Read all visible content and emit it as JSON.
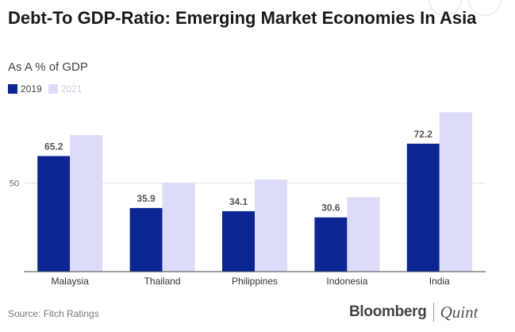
{
  "chart_data": {
    "type": "bar",
    "title": "Debt-To GDP-Ratio: Emerging Market Economies In Asia",
    "subtitle": "As A % of GDP",
    "categories": [
      "Malaysia",
      "Thailand",
      "Philippines",
      "Indonesia",
      "India"
    ],
    "series": [
      {
        "name": "2019",
        "values": [
          65.2,
          35.9,
          34.1,
          30.6,
          72.2
        ],
        "color": "#0b2692",
        "labels": [
          "65.2",
          "35.9",
          "34.1",
          "30.6",
          "72.2"
        ]
      },
      {
        "name": "2021",
        "values": [
          77,
          50,
          52,
          42,
          90
        ],
        "color": "#dcdcf9"
      }
    ],
    "yticks": [
      50
    ],
    "ylim": [
      0,
      95
    ],
    "grid": true,
    "legend": "top-left"
  },
  "footer": {
    "source": "Source: Fitch Ratings",
    "brand_left": "Bloomberg",
    "brand_right": "Quint"
  }
}
